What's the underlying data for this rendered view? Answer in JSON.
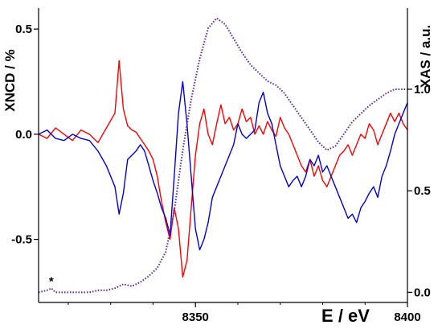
{
  "chart_data": {
    "type": "line",
    "title": "",
    "xlabel": "E / eV",
    "ylabel_left": "XNCD / %",
    "ylabel_right": "XAS / a.u.",
    "xlim": [
      8313,
      8400
    ],
    "ylim_left": [
      -0.8,
      0.6
    ],
    "ylim_right": [
      -0.05,
      1.4
    ],
    "x_ticks": [
      8350,
      8400
    ],
    "y_left_ticks": [
      -0.5,
      0.0,
      0.5
    ],
    "y_left_tick_labels": [
      "-0.5",
      "0.0",
      "0.5"
    ],
    "y_right_ticks": [
      0.0,
      0.5,
      1.0
    ],
    "y_right_tick_labels": [
      "0.0",
      "0.5",
      "1.0"
    ],
    "annotation": "*",
    "annotation_x": 8316,
    "grid": false,
    "series": [
      {
        "axis": "left",
        "color": "#ff0000",
        "x": [
          8313,
          8315,
          8317,
          8319,
          8321,
          8323,
          8325,
          8327,
          8329,
          8331,
          8332,
          8333,
          8334,
          8335,
          8336,
          8337,
          8338,
          8339,
          8340,
          8341,
          8342,
          8343,
          8344,
          8345,
          8346,
          8347,
          8348,
          8349,
          8350,
          8351,
          8352,
          8353,
          8354,
          8355,
          8356,
          8357,
          8358,
          8359,
          8360,
          8361,
          8362,
          8363,
          8364,
          8365,
          8366,
          8367,
          8368,
          8369,
          8370,
          8371,
          8372,
          8373,
          8374,
          8375,
          8376,
          8377,
          8378,
          8379,
          8380,
          8381,
          8382,
          8383,
          8384,
          8385,
          8386,
          8387,
          8388,
          8389,
          8390,
          8391,
          8392,
          8393,
          8394,
          8395,
          8396,
          8397,
          8398,
          8399,
          8400
        ],
        "y": [
          0.0,
          -0.02,
          0.03,
          0.0,
          -0.03,
          0.02,
          0.0,
          -0.04,
          0.03,
          0.1,
          0.35,
          0.12,
          0.04,
          0.02,
          0.01,
          -0.02,
          -0.05,
          -0.08,
          -0.12,
          -0.2,
          -0.32,
          -0.42,
          -0.5,
          -0.35,
          -0.45,
          -0.68,
          -0.6,
          -0.35,
          -0.1,
          0.05,
          0.12,
          0.0,
          -0.05,
          0.05,
          0.14,
          0.05,
          0.08,
          0.02,
          0.05,
          0.12,
          0.06,
          0.08,
          0.0,
          0.04,
          0.0,
          0.06,
          0.02,
          -0.01,
          0.08,
          0.03,
          0.0,
          -0.05,
          -0.1,
          -0.15,
          -0.18,
          -0.12,
          -0.2,
          -0.15,
          -0.22,
          -0.25,
          -0.2,
          -0.15,
          -0.1,
          -0.08,
          -0.05,
          -0.1,
          -0.05,
          0.0,
          -0.02,
          0.05,
          0.02,
          -0.05,
          0.0,
          0.05,
          0.1,
          0.06,
          0.1,
          0.05,
          0.02
        ]
      },
      {
        "axis": "left",
        "color": "#0000dd",
        "x": [
          8313,
          8315,
          8317,
          8319,
          8321,
          8323,
          8325,
          8327,
          8329,
          8331,
          8332,
          8333,
          8334,
          8335,
          8336,
          8337,
          8338,
          8339,
          8340,
          8341,
          8342,
          8343,
          8344,
          8345,
          8346,
          8347,
          8348,
          8349,
          8350,
          8351,
          8352,
          8353,
          8354,
          8355,
          8356,
          8357,
          8358,
          8359,
          8360,
          8361,
          8362,
          8363,
          8364,
          8365,
          8366,
          8367,
          8368,
          8369,
          8370,
          8371,
          8372,
          8373,
          8374,
          8375,
          8376,
          8377,
          8378,
          8379,
          8380,
          8381,
          8382,
          8383,
          8384,
          8385,
          8386,
          8387,
          8388,
          8389,
          8390,
          8391,
          8392,
          8393,
          8394,
          8395,
          8396,
          8397,
          8398,
          8399,
          8400
        ],
        "y": [
          0.0,
          0.02,
          -0.02,
          -0.03,
          0.0,
          -0.02,
          -0.03,
          -0.08,
          -0.15,
          -0.25,
          -0.38,
          -0.28,
          -0.12,
          -0.1,
          -0.08,
          -0.05,
          -0.08,
          -0.15,
          -0.22,
          -0.28,
          -0.35,
          -0.4,
          -0.48,
          -0.2,
          0.1,
          0.25,
          0.05,
          -0.2,
          -0.45,
          -0.55,
          -0.5,
          -0.42,
          -0.3,
          -0.25,
          -0.2,
          -0.15,
          -0.1,
          -0.05,
          0.05,
          0.0,
          -0.02,
          0.0,
          0.02,
          0.15,
          0.2,
          0.1,
          0.05,
          -0.05,
          -0.15,
          -0.2,
          -0.25,
          -0.22,
          -0.2,
          -0.25,
          -0.2,
          -0.12,
          -0.15,
          -0.1,
          -0.18,
          -0.15,
          -0.2,
          -0.25,
          -0.3,
          -0.35,
          -0.4,
          -0.38,
          -0.42,
          -0.35,
          -0.32,
          -0.28,
          -0.25,
          -0.3,
          -0.2,
          -0.15,
          -0.08,
          0.0,
          0.05,
          0.1,
          0.15
        ]
      },
      {
        "axis": "right",
        "color": "#5522aa",
        "style": "dotted",
        "x": [
          8313,
          8315,
          8316,
          8317,
          8319,
          8321,
          8323,
          8325,
          8327,
          8329,
          8331,
          8333,
          8335,
          8337,
          8339,
          8341,
          8343,
          8345,
          8347,
          8349,
          8351,
          8353,
          8355,
          8357,
          8359,
          8361,
          8363,
          8365,
          8367,
          8369,
          8371,
          8373,
          8375,
          8377,
          8379,
          8381,
          8383,
          8385,
          8387,
          8389,
          8391,
          8393,
          8395,
          8397,
          8400
        ],
        "y": [
          0.0,
          0.01,
          0.02,
          0.0,
          0.0,
          0.0,
          0.0,
          0.0,
          0.01,
          0.01,
          0.02,
          0.04,
          0.03,
          0.05,
          0.08,
          0.12,
          0.2,
          0.4,
          0.7,
          0.95,
          1.15,
          1.3,
          1.35,
          1.32,
          1.25,
          1.18,
          1.12,
          1.08,
          1.04,
          1.02,
          0.98,
          0.92,
          0.86,
          0.8,
          0.74,
          0.7,
          0.72,
          0.78,
          0.84,
          0.88,
          0.92,
          0.95,
          0.98,
          1.0,
          1.0
        ]
      }
    ]
  }
}
